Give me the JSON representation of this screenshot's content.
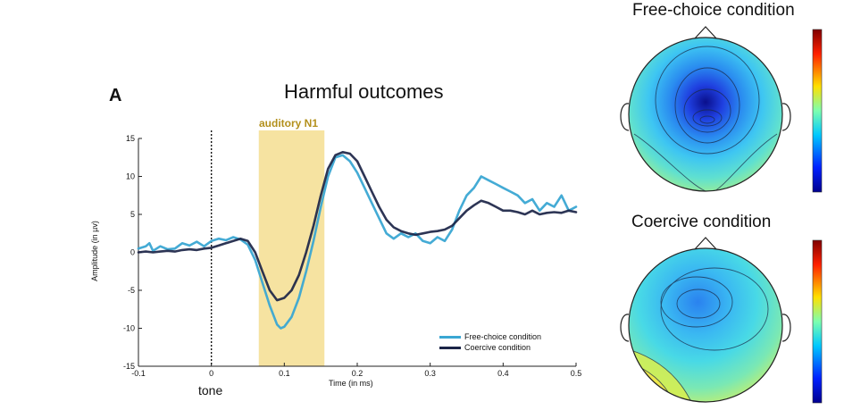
{
  "panel_letter": "A",
  "chart_data": {
    "type": "line",
    "title": "Harmful outcomes",
    "xlabel": "Time (in ms)",
    "ylabel": "Amplitude (in µv)",
    "xlim": [
      -0.1,
      0.5
    ],
    "ylim": [
      -15,
      15
    ],
    "xticks": [
      "-0.1",
      "0",
      "0.1",
      "0.2",
      "0.3",
      "0.4",
      "0.5"
    ],
    "yticks": [
      "15",
      "10",
      "5",
      "0",
      "-5",
      "-10",
      "-15"
    ],
    "grid": false,
    "legend_position": "bottom-right",
    "onset_marker": {
      "x": 0,
      "label": "tone"
    },
    "highlight_window": {
      "x0": 0.065,
      "x1": 0.155,
      "label": "auditory N1",
      "color": "#f6e3a1"
    },
    "series": [
      {
        "name": "Free-choice condition",
        "color": "#3aa7d3",
        "points": [
          [
            -0.1,
            0.5
          ],
          [
            -0.09,
            0.8
          ],
          [
            -0.085,
            1.2
          ],
          [
            -0.08,
            0.2
          ],
          [
            -0.07,
            0.8
          ],
          [
            -0.06,
            0.4
          ],
          [
            -0.05,
            0.5
          ],
          [
            -0.04,
            1.2
          ],
          [
            -0.03,
            0.9
          ],
          [
            -0.02,
            1.4
          ],
          [
            -0.01,
            0.8
          ],
          [
            0,
            1.5
          ],
          [
            0.01,
            1.8
          ],
          [
            0.02,
            1.6
          ],
          [
            0.03,
            2.0
          ],
          [
            0.04,
            1.7
          ],
          [
            0.05,
            1.0
          ],
          [
            0.06,
            -1.0
          ],
          [
            0.07,
            -4.0
          ],
          [
            0.08,
            -7.0
          ],
          [
            0.09,
            -9.5
          ],
          [
            0.095,
            -10.0
          ],
          [
            0.1,
            -9.8
          ],
          [
            0.11,
            -8.5
          ],
          [
            0.12,
            -6.0
          ],
          [
            0.13,
            -2.5
          ],
          [
            0.14,
            1.5
          ],
          [
            0.15,
            6.0
          ],
          [
            0.16,
            10.0
          ],
          [
            0.17,
            12.5
          ],
          [
            0.18,
            12.8
          ],
          [
            0.19,
            12.0
          ],
          [
            0.2,
            10.5
          ],
          [
            0.21,
            8.5
          ],
          [
            0.22,
            6.5
          ],
          [
            0.23,
            4.5
          ],
          [
            0.24,
            2.5
          ],
          [
            0.25,
            1.8
          ],
          [
            0.26,
            2.5
          ],
          [
            0.27,
            2.0
          ],
          [
            0.28,
            2.5
          ],
          [
            0.29,
            1.5
          ],
          [
            0.3,
            1.2
          ],
          [
            0.31,
            2.0
          ],
          [
            0.32,
            1.5
          ],
          [
            0.33,
            3.0
          ],
          [
            0.34,
            5.5
          ],
          [
            0.35,
            7.5
          ],
          [
            0.36,
            8.5
          ],
          [
            0.37,
            10.0
          ],
          [
            0.38,
            9.5
          ],
          [
            0.39,
            9.0
          ],
          [
            0.4,
            8.5
          ],
          [
            0.41,
            8.0
          ],
          [
            0.42,
            7.5
          ],
          [
            0.43,
            6.5
          ],
          [
            0.44,
            7.0
          ],
          [
            0.45,
            5.5
          ],
          [
            0.46,
            6.5
          ],
          [
            0.47,
            6.0
          ],
          [
            0.48,
            7.5
          ],
          [
            0.49,
            5.5
          ],
          [
            0.5,
            6.0
          ]
        ]
      },
      {
        "name": "Coercive condition",
        "color": "#1b2447",
        "points": [
          [
            -0.1,
            0
          ],
          [
            -0.09,
            0.1
          ],
          [
            -0.08,
            0
          ],
          [
            -0.07,
            0.1
          ],
          [
            -0.06,
            0.2
          ],
          [
            -0.05,
            0.1
          ],
          [
            -0.04,
            0.3
          ],
          [
            -0.03,
            0.4
          ],
          [
            -0.02,
            0.3
          ],
          [
            -0.01,
            0.5
          ],
          [
            0,
            0.6
          ],
          [
            0.01,
            0.9
          ],
          [
            0.02,
            1.2
          ],
          [
            0.03,
            1.5
          ],
          [
            0.04,
            1.8
          ],
          [
            0.05,
            1.5
          ],
          [
            0.06,
            0
          ],
          [
            0.07,
            -2.5
          ],
          [
            0.08,
            -5.0
          ],
          [
            0.09,
            -6.3
          ],
          [
            0.1,
            -6.0
          ],
          [
            0.11,
            -5.0
          ],
          [
            0.12,
            -3.0
          ],
          [
            0.13,
            0
          ],
          [
            0.14,
            3.5
          ],
          [
            0.15,
            7.5
          ],
          [
            0.16,
            11.0
          ],
          [
            0.17,
            12.8
          ],
          [
            0.18,
            13.2
          ],
          [
            0.19,
            13.0
          ],
          [
            0.2,
            12.0
          ],
          [
            0.21,
            10.0
          ],
          [
            0.22,
            8.0
          ],
          [
            0.23,
            6.0
          ],
          [
            0.24,
            4.3
          ],
          [
            0.25,
            3.3
          ],
          [
            0.26,
            2.8
          ],
          [
            0.27,
            2.5
          ],
          [
            0.28,
            2.3
          ],
          [
            0.29,
            2.5
          ],
          [
            0.3,
            2.7
          ],
          [
            0.31,
            2.8
          ],
          [
            0.32,
            3.0
          ],
          [
            0.33,
            3.5
          ],
          [
            0.34,
            4.5
          ],
          [
            0.35,
            5.5
          ],
          [
            0.36,
            6.2
          ],
          [
            0.37,
            6.8
          ],
          [
            0.38,
            6.5
          ],
          [
            0.39,
            6.0
          ],
          [
            0.4,
            5.5
          ],
          [
            0.41,
            5.5
          ],
          [
            0.42,
            5.3
          ],
          [
            0.43,
            5.0
          ],
          [
            0.44,
            5.5
          ],
          [
            0.45,
            5.0
          ],
          [
            0.46,
            5.2
          ],
          [
            0.47,
            5.3
          ],
          [
            0.48,
            5.2
          ],
          [
            0.49,
            5.5
          ],
          [
            0.5,
            5.3
          ]
        ]
      }
    ]
  },
  "topomaps": [
    {
      "title": "Free-choice condition"
    },
    {
      "title": "Coercive condition"
    }
  ],
  "colorbar": {
    "colormap": "jet"
  }
}
